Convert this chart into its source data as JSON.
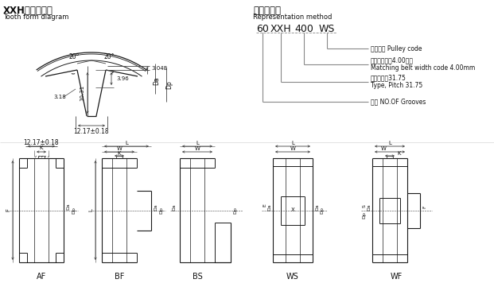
{
  "title_zh": "XXH型齿形图：",
  "title_en": "Tooth form diagram",
  "repr_title_zh": "表示方法：",
  "repr_title_en": "Representation method",
  "pulley_labels": [
    "AF",
    "BF",
    "BS",
    "WS",
    "WF"
  ],
  "bg_color": "#ffffff",
  "line_color": "#1a1a1a",
  "dim_color": "#444444",
  "text_color": "#111111",
  "gray_color": "#888888"
}
